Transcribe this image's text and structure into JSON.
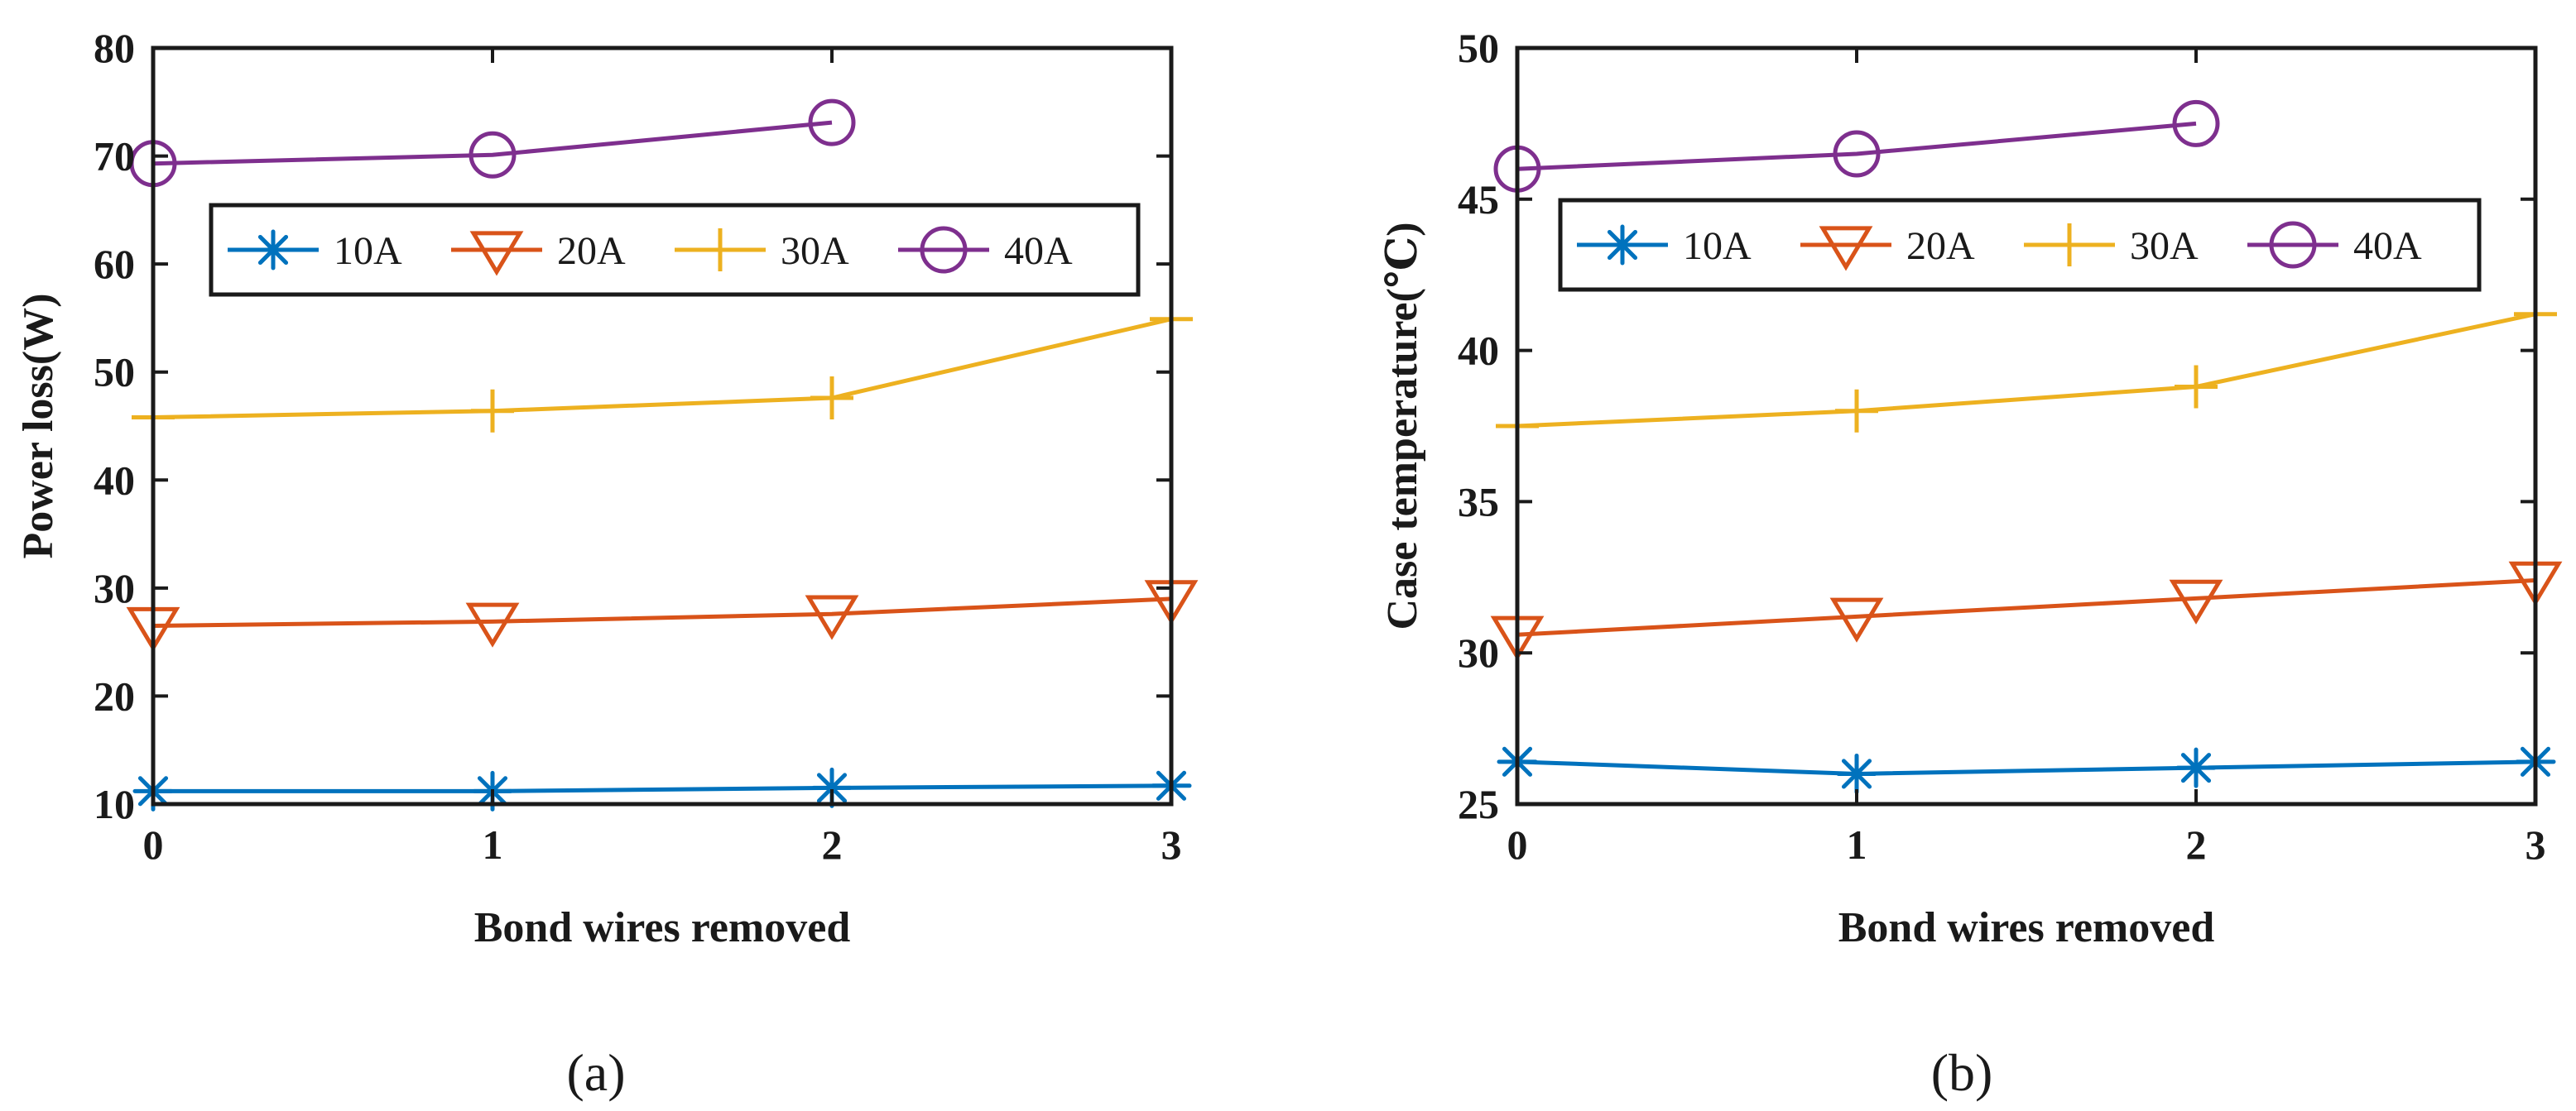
{
  "chart_data": [
    {
      "type": "line",
      "caption": "(a)",
      "xlabel": "Bond wires removed",
      "ylabel": "Power loss(W)",
      "x": [
        0,
        1,
        2,
        3
      ],
      "xlim": [
        0,
        3
      ],
      "ylim": [
        10,
        80
      ],
      "xticks": [
        0,
        1,
        2,
        3
      ],
      "yticks": [
        10,
        20,
        30,
        40,
        50,
        60,
        70,
        80
      ],
      "grid": false,
      "legend_position": "upper-center",
      "series": [
        {
          "name": "10A",
          "marker": "asterisk",
          "color": "#0072BD",
          "x": [
            0,
            1,
            2,
            3
          ],
          "values": [
            11.2,
            11.2,
            11.5,
            11.7
          ]
        },
        {
          "name": "20A",
          "marker": "triangle-down",
          "color": "#D95319",
          "x": [
            0,
            1,
            2,
            3
          ],
          "values": [
            26.5,
            26.9,
            27.6,
            29.0
          ]
        },
        {
          "name": "30A",
          "marker": "plus",
          "color": "#EDB120",
          "x": [
            0,
            1,
            2,
            3
          ],
          "values": [
            45.8,
            46.4,
            47.6,
            54.9
          ]
        },
        {
          "name": "40A",
          "marker": "circle",
          "color": "#7E2F8E",
          "x": [
            0,
            1,
            2
          ],
          "values": [
            69.3,
            70.1,
            73.1
          ]
        }
      ]
    },
    {
      "type": "line",
      "caption": "(b)",
      "xlabel": "Bond wires removed",
      "ylabel": "Case temperature(℃)",
      "x": [
        0,
        1,
        2,
        3
      ],
      "xlim": [
        0,
        3
      ],
      "ylim": [
        25,
        50
      ],
      "xticks": [
        0,
        1,
        2,
        3
      ],
      "yticks": [
        25,
        30,
        35,
        40,
        45,
        50
      ],
      "grid": false,
      "legend_position": "upper-center",
      "series": [
        {
          "name": "10A",
          "marker": "asterisk",
          "color": "#0072BD",
          "x": [
            0,
            1,
            2,
            3
          ],
          "values": [
            26.4,
            26.0,
            26.2,
            26.4
          ]
        },
        {
          "name": "20A",
          "marker": "triangle-down",
          "color": "#D95319",
          "x": [
            0,
            1,
            2,
            3
          ],
          "values": [
            30.6,
            31.2,
            31.8,
            32.4
          ]
        },
        {
          "name": "30A",
          "marker": "plus",
          "color": "#EDB120",
          "x": [
            0,
            1,
            2,
            3
          ],
          "values": [
            37.5,
            38.0,
            38.8,
            41.2
          ]
        },
        {
          "name": "40A",
          "marker": "circle",
          "color": "#7E2F8E",
          "x": [
            0,
            1,
            2
          ],
          "values": [
            46.0,
            46.5,
            47.5
          ]
        }
      ]
    }
  ]
}
